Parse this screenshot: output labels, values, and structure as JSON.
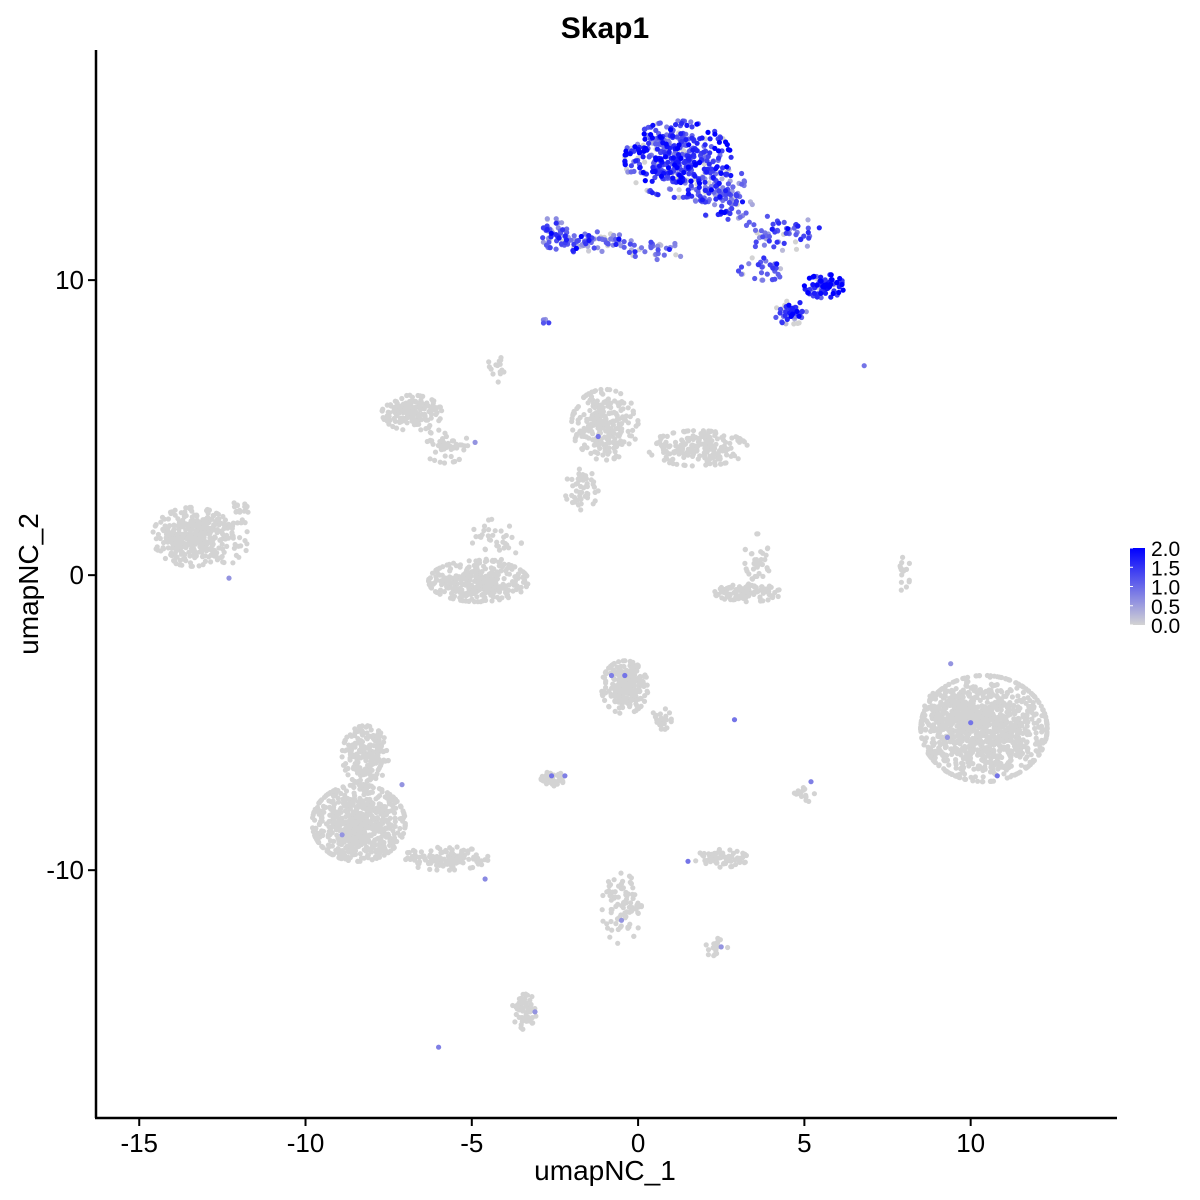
{
  "chart_data": {
    "type": "scatter",
    "title": "Skap1",
    "xlabel": "umapNC_1",
    "ylabel": "umapNC_2",
    "xlim": [
      -16.3,
      14.4
    ],
    "ylim": [
      -18.4,
      17.8
    ],
    "x_ticks": [
      -15,
      -10,
      -5,
      0,
      5,
      10
    ],
    "x_tick_labels": [
      "-15",
      "-10",
      "-5",
      "0",
      "5",
      "10"
    ],
    "y_ticks": [
      -10,
      0,
      10
    ],
    "y_tick_labels": [
      "-10",
      "0",
      "10"
    ],
    "grid": false,
    "color_low": "#d3d3d3",
    "color_high": "#0000ff",
    "legend": {
      "position": "right",
      "range": [
        0,
        2.0
      ],
      "tick_values": [
        2.0,
        1.5,
        1.0,
        0.5,
        0.0
      ],
      "tick_labels": [
        "2.0",
        "1.5",
        "1.0",
        "0.5",
        "0.0"
      ]
    },
    "clusters": [
      {
        "name": "c1",
        "cx": 1.2,
        "cy": 14.1,
        "rx": 1.6,
        "ry": 1.3,
        "n": 420,
        "expr": 1.45
      },
      {
        "name": "c2",
        "cx": 2.6,
        "cy": 12.9,
        "rx": 0.9,
        "ry": 0.9,
        "n": 110,
        "expr": 1.1
      },
      {
        "name": "c3",
        "cx": -1.6,
        "cy": 11.3,
        "rx": 1.4,
        "ry": 0.35,
        "n": 90,
        "expr": 1.0
      },
      {
        "name": "c4",
        "cx": -2.6,
        "cy": 11.6,
        "rx": 0.5,
        "ry": 0.5,
        "n": 40,
        "expr": 1.1
      },
      {
        "name": "c5",
        "cx": 0.6,
        "cy": 11.0,
        "rx": 0.9,
        "ry": 0.3,
        "n": 30,
        "expr": 1.0
      },
      {
        "name": "c6",
        "cx": 4.3,
        "cy": 11.6,
        "rx": 1.2,
        "ry": 0.6,
        "n": 60,
        "expr": 1.2
      },
      {
        "name": "c7",
        "cx": 5.6,
        "cy": 9.8,
        "rx": 0.6,
        "ry": 0.4,
        "n": 80,
        "expr": 1.8
      },
      {
        "name": "c8",
        "cx": 4.6,
        "cy": 8.9,
        "rx": 0.5,
        "ry": 0.4,
        "n": 50,
        "expr": 1.5
      },
      {
        "name": "c9",
        "cx": 3.8,
        "cy": 10.4,
        "rx": 0.8,
        "ry": 0.4,
        "n": 30,
        "expr": 1.0
      },
      {
        "name": "c10",
        "cx": -2.8,
        "cy": 8.6,
        "rx": 0.15,
        "ry": 0.15,
        "n": 4,
        "expr": 0.9
      },
      {
        "name": "c11",
        "cx": -13.4,
        "cy": 1.3,
        "rx": 1.2,
        "ry": 1.0,
        "n": 380,
        "expr": 0.0
      },
      {
        "name": "c12",
        "cx": -12.3,
        "cy": 1.3,
        "rx": 0.6,
        "ry": 0.9,
        "n": 40,
        "expr": 0.0
      },
      {
        "name": "c13",
        "cx": -6.8,
        "cy": 5.5,
        "rx": 0.9,
        "ry": 0.6,
        "n": 170,
        "expr": 0.0
      },
      {
        "name": "c14",
        "cx": -5.8,
        "cy": 4.4,
        "rx": 0.7,
        "ry": 0.6,
        "n": 50,
        "expr": 0.0
      },
      {
        "name": "c15",
        "cx": -4.8,
        "cy": -0.2,
        "rx": 1.5,
        "ry": 0.7,
        "n": 330,
        "expr": 0.0
      },
      {
        "name": "c16",
        "cx": -4.3,
        "cy": 1.2,
        "rx": 0.8,
        "ry": 0.7,
        "n": 40,
        "expr": 0.0
      },
      {
        "name": "c17",
        "cx": -1.0,
        "cy": 5.1,
        "rx": 1.0,
        "ry": 1.2,
        "n": 250,
        "expr": 0.0
      },
      {
        "name": "c18",
        "cx": 1.8,
        "cy": 4.3,
        "rx": 1.5,
        "ry": 0.6,
        "n": 200,
        "expr": 0.0
      },
      {
        "name": "c19",
        "cx": -1.7,
        "cy": 2.9,
        "rx": 0.5,
        "ry": 0.7,
        "n": 50,
        "expr": 0.0
      },
      {
        "name": "c20",
        "cx": 3.3,
        "cy": -0.6,
        "rx": 1.0,
        "ry": 0.3,
        "n": 100,
        "expr": 0.0
      },
      {
        "name": "c21",
        "cx": 3.6,
        "cy": 0.6,
        "rx": 0.4,
        "ry": 0.8,
        "n": 40,
        "expr": 0.0
      },
      {
        "name": "c22",
        "cx": 10.4,
        "cy": -5.2,
        "rx": 1.9,
        "ry": 1.8,
        "n": 1050,
        "expr": 0.0
      },
      {
        "name": "c23",
        "cx": 9.4,
        "cy": -4.6,
        "rx": 0.8,
        "ry": 0.8,
        "n": 100,
        "expr": 0.0
      },
      {
        "name": "c24",
        "cx": -8.4,
        "cy": -8.4,
        "rx": 1.4,
        "ry": 1.3,
        "n": 700,
        "expr": 0.0
      },
      {
        "name": "c25",
        "cx": -8.2,
        "cy": -6.1,
        "rx": 0.7,
        "ry": 1.0,
        "n": 200,
        "expr": 0.0
      },
      {
        "name": "c26",
        "cx": -5.8,
        "cy": -9.6,
        "rx": 1.3,
        "ry": 0.4,
        "n": 130,
        "expr": 0.0
      },
      {
        "name": "c27",
        "cx": -0.4,
        "cy": -3.8,
        "rx": 0.7,
        "ry": 0.9,
        "n": 230,
        "expr": 0.0
      },
      {
        "name": "c28",
        "cx": 0.7,
        "cy": -4.9,
        "rx": 0.3,
        "ry": 0.4,
        "n": 30,
        "expr": 0.0
      },
      {
        "name": "c29",
        "cx": -2.6,
        "cy": -6.9,
        "rx": 0.4,
        "ry": 0.25,
        "n": 50,
        "expr": 0.0
      },
      {
        "name": "c30",
        "cx": 2.5,
        "cy": -9.6,
        "rx": 0.8,
        "ry": 0.3,
        "n": 70,
        "expr": 0.0
      },
      {
        "name": "c31",
        "cx": -0.5,
        "cy": -11.3,
        "rx": 0.6,
        "ry": 1.2,
        "n": 90,
        "expr": 0.0
      },
      {
        "name": "c32",
        "cx": 2.3,
        "cy": -12.6,
        "rx": 0.4,
        "ry": 0.3,
        "n": 20,
        "expr": 0.0
      },
      {
        "name": "c33",
        "cx": -3.4,
        "cy": -14.8,
        "rx": 0.4,
        "ry": 0.6,
        "n": 60,
        "expr": 0.0
      },
      {
        "name": "c34",
        "cx": 5.0,
        "cy": -7.4,
        "rx": 0.3,
        "ry": 0.3,
        "n": 20,
        "expr": 0.0
      },
      {
        "name": "c35",
        "cx": 8.0,
        "cy": 0.2,
        "rx": 0.2,
        "ry": 0.8,
        "n": 15,
        "expr": 0.0
      },
      {
        "name": "c36",
        "cx": -4.3,
        "cy": 7.0,
        "rx": 0.3,
        "ry": 0.6,
        "n": 15,
        "expr": 0.0
      },
      {
        "name": "c37",
        "cx": -11.9,
        "cy": 2.3,
        "rx": 0.4,
        "ry": 0.3,
        "n": 15,
        "expr": 0.0
      }
    ],
    "highlighted_points": [
      {
        "x": -0.8,
        "y": -3.4,
        "v": 0.8
      },
      {
        "x": -0.4,
        "y": -3.4,
        "v": 0.9
      },
      {
        "x": 9.4,
        "y": -3.0,
        "v": 0.6
      },
      {
        "x": 10.0,
        "y": -5.0,
        "v": 0.9
      },
      {
        "x": 9.3,
        "y": -5.5,
        "v": 0.6
      },
      {
        "x": 10.8,
        "y": -6.8,
        "v": 0.9
      },
      {
        "x": 5.2,
        "y": -7.0,
        "v": 0.8
      },
      {
        "x": 2.9,
        "y": -4.9,
        "v": 0.9
      },
      {
        "x": -2.6,
        "y": -6.8,
        "v": 0.9
      },
      {
        "x": -2.2,
        "y": -6.8,
        "v": 0.8
      },
      {
        "x": -8.9,
        "y": -8.8,
        "v": 0.6
      },
      {
        "x": -7.1,
        "y": -7.1,
        "v": 0.6
      },
      {
        "x": -4.6,
        "y": -10.3,
        "v": 0.7
      },
      {
        "x": -1.2,
        "y": 4.7,
        "v": 0.9
      },
      {
        "x": -4.9,
        "y": 4.5,
        "v": 0.6
      },
      {
        "x": -12.3,
        "y": -0.1,
        "v": 0.6
      },
      {
        "x": 1.5,
        "y": -9.7,
        "v": 0.9
      },
      {
        "x": 2.5,
        "y": -12.6,
        "v": 0.6
      },
      {
        "x": -6.0,
        "y": -16.0,
        "v": 0.8
      },
      {
        "x": -3.1,
        "y": -14.8,
        "v": 0.6
      },
      {
        "x": -0.5,
        "y": -11.7,
        "v": 0.6
      },
      {
        "x": 6.8,
        "y": 7.1,
        "v": 0.9
      }
    ]
  }
}
